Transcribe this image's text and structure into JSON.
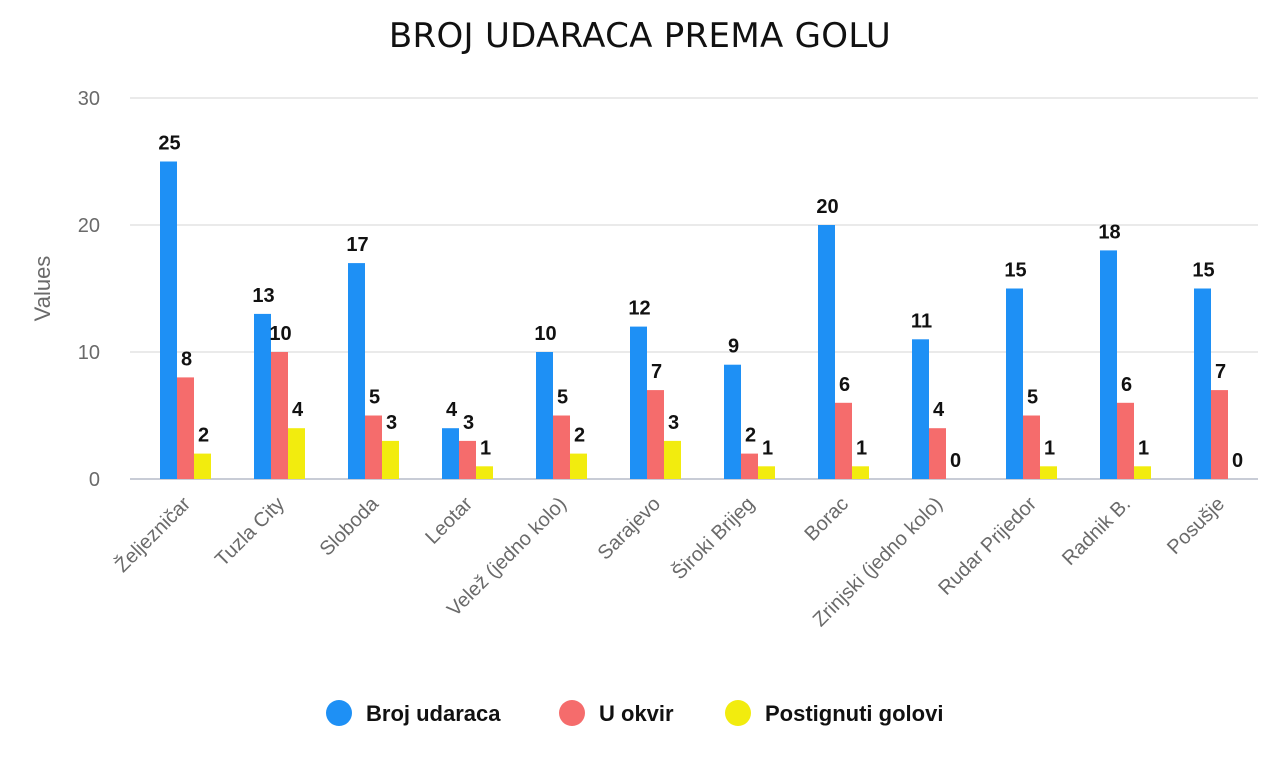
{
  "chart_data": {
    "type": "bar",
    "title": "BROJ UDARACA PREMA GOLU",
    "xlabel": "",
    "ylabel": "Values",
    "ylim": [
      0,
      30
    ],
    "yticks": [
      0,
      10,
      20,
      30
    ],
    "grid": true,
    "legend_position": "bottom",
    "categories": [
      "Željezničar",
      "Tuzla City",
      "Sloboda",
      "Leotar",
      "Velež (jedno kolo)",
      "Sarajevo",
      "Široki Brijeg",
      "Borac",
      "Zrinjski (jedno kolo)",
      "Rudar Prijedor",
      "Radnik B.",
      "Posušje"
    ],
    "series": [
      {
        "name": "Broj udaraca",
        "color": "#1E90F5",
        "values": [
          25,
          13,
          17,
          4,
          10,
          12,
          9,
          20,
          11,
          15,
          18,
          15
        ]
      },
      {
        "name": "U okvir",
        "color": "#F56C6C",
        "values": [
          8,
          10,
          5,
          3,
          5,
          7,
          2,
          6,
          4,
          5,
          6,
          7
        ]
      },
      {
        "name": "Postignuti golovi",
        "color": "#F2EC0E",
        "values": [
          2,
          4,
          3,
          1,
          2,
          3,
          1,
          1,
          0,
          1,
          1,
          0
        ]
      }
    ]
  }
}
